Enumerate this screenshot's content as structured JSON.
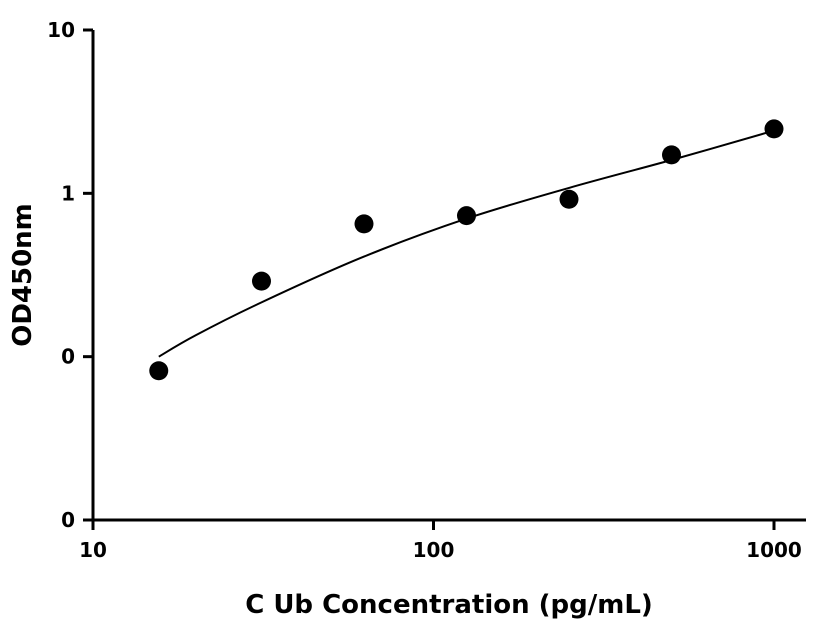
{
  "chart_data": {
    "type": "scatter",
    "title": "",
    "xlabel": "C Ub Concentration (pg/mL)",
    "ylabel": "OD450nm",
    "x_scale": "log",
    "y_scale": "log",
    "xlim": [
      10,
      1100
    ],
    "ylim": [
      0.01,
      10
    ],
    "x_ticks": [
      {
        "value": 10,
        "label": "10"
      },
      {
        "value": 100,
        "label": "100"
      },
      {
        "value": 1000,
        "label": "1000"
      }
    ],
    "y_ticks": [
      {
        "value": 0.01,
        "label": "0"
      },
      {
        "value": 0.1,
        "label": "0"
      },
      {
        "value": 1,
        "label": "1"
      },
      {
        "value": 10,
        "label": "10"
      }
    ],
    "grid": false,
    "legend": "none",
    "series": [
      {
        "type": "scatter",
        "x": [
          15.6,
          31.25,
          62.5,
          125,
          250,
          500,
          1000
        ],
        "y": [
          0.082,
          0.29,
          0.65,
          0.73,
          0.92,
          1.72,
          2.48
        ]
      },
      {
        "type": "line",
        "x": [
          15.6,
          20,
          31.25,
          62.5,
          125,
          250,
          500,
          1000
        ],
        "y": [
          0.1,
          0.135,
          0.215,
          0.41,
          0.7,
          1.08,
          1.6,
          2.42
        ]
      }
    ],
    "colors": {
      "points": "#000000",
      "line": "#000000",
      "axes": "#000000"
    }
  }
}
